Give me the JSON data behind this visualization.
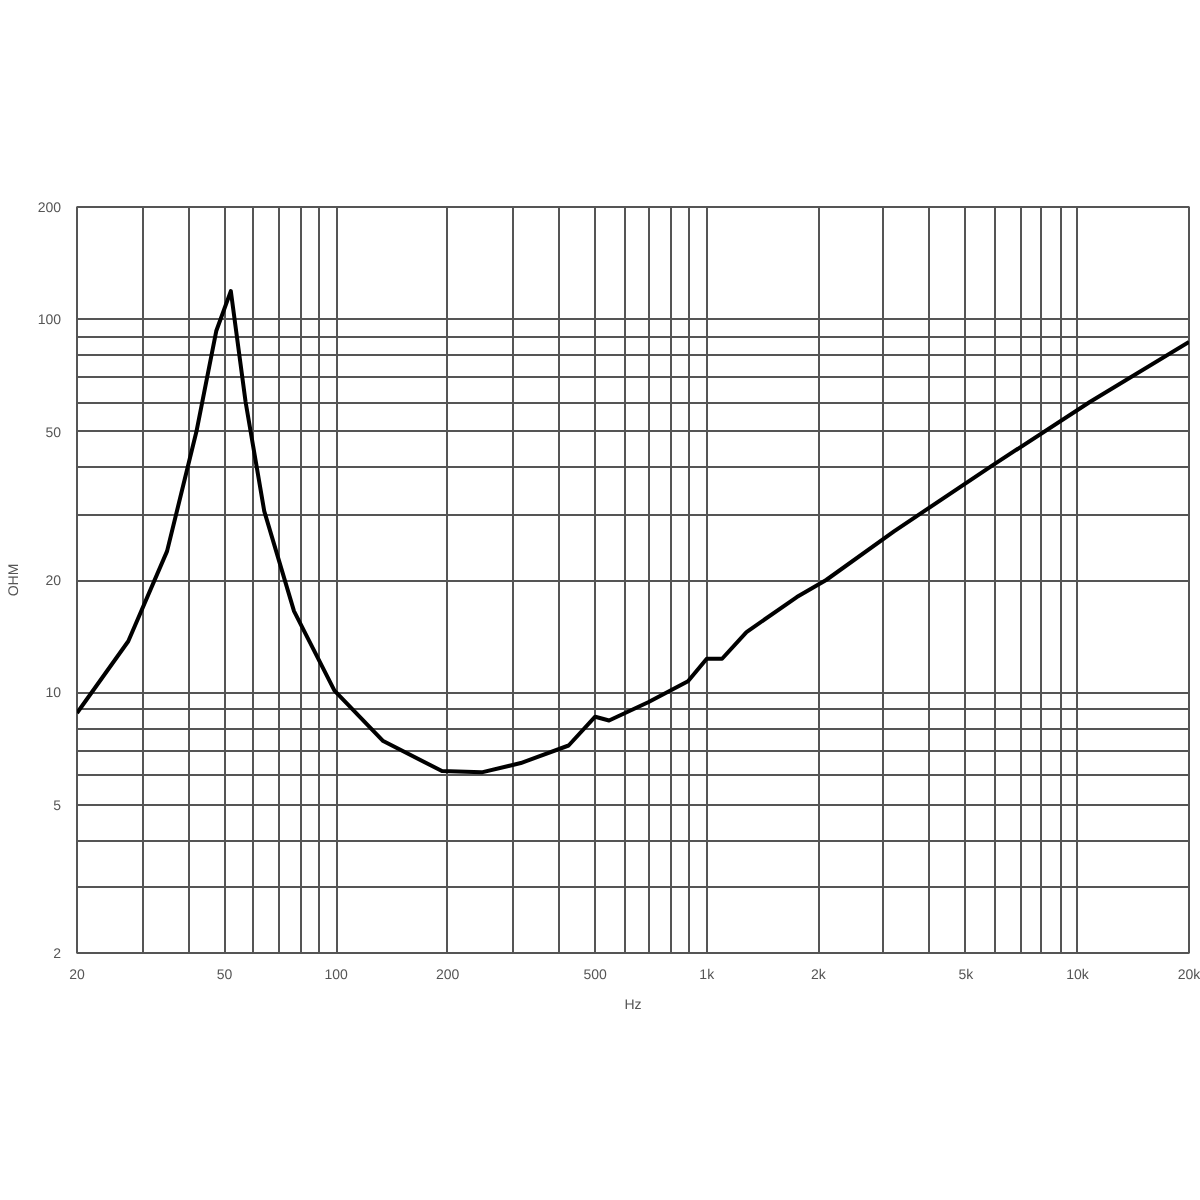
{
  "chart_data": {
    "type": "line",
    "xlabel": "Hz",
    "ylabel": "OHM",
    "log": "xy",
    "grid": true,
    "line_style": "solid",
    "color": "#000000",
    "x": [
      20,
      27.5,
      35,
      42,
      47.5,
      52,
      57,
      64,
      77,
      99,
      134,
      193,
      247,
      315,
      424,
      500,
      545,
      695,
      890,
      1000,
      1100,
      1280,
      1750,
      2100,
      3200,
      5900,
      10800,
      20000
    ],
    "values": [
      8.8,
      13.7,
      23.9,
      50,
      93,
      119,
      60,
      30.6,
      16.5,
      10.1,
      7.4,
      6.15,
      6.1,
      6.46,
      7.2,
      8.6,
      8.4,
      9.4,
      10.7,
      12.3,
      12.3,
      14.5,
      18,
      20,
      27,
      40.6,
      60,
      87
    ],
    "xlim": [
      20,
      20000
    ],
    "ylim": [
      2,
      200
    ],
    "xticks": [
      20,
      {
        "value": 30,
        "label": null
      },
      {
        "value": 40,
        "label": null
      },
      50,
      {
        "value": 60,
        "label": null
      },
      {
        "value": 70,
        "label": null
      },
      {
        "value": 80,
        "label": null
      },
      {
        "value": 90,
        "label": null
      },
      100,
      200,
      {
        "value": 300,
        "label": null
      },
      {
        "value": 400,
        "label": null
      },
      500,
      {
        "value": 600,
        "label": null
      },
      {
        "value": 700,
        "label": null
      },
      {
        "value": 800,
        "label": null
      },
      {
        "value": 900,
        "label": null
      },
      {
        "value": 1000,
        "label": "1k"
      },
      {
        "value": 2000,
        "label": "2k"
      },
      {
        "value": 3000,
        "label": null
      },
      {
        "value": 4000,
        "label": null
      },
      {
        "value": 5000,
        "label": "5k"
      },
      {
        "value": 6000,
        "label": null
      },
      {
        "value": 7000,
        "label": null
      },
      {
        "value": 8000,
        "label": null
      },
      {
        "value": 9000,
        "label": null
      },
      {
        "value": 10000,
        "label": "10k"
      },
      {
        "value": 20000,
        "label": "20k"
      }
    ],
    "yticks": [
      2,
      {
        "value": 3,
        "label": null
      },
      {
        "value": 4,
        "label": null
      },
      5,
      {
        "value": 6,
        "label": null
      },
      {
        "value": 7,
        "label": null
      },
      {
        "value": 8,
        "label": null
      },
      {
        "value": 9,
        "label": null
      },
      10,
      20,
      {
        "value": 30,
        "label": null
      },
      {
        "value": 40,
        "label": null
      },
      50,
      {
        "value": 60,
        "label": null
      },
      {
        "value": 70,
        "label": null
      },
      {
        "value": 80,
        "label": null
      },
      {
        "value": 90,
        "label": null
      },
      100,
      200
    ]
  }
}
